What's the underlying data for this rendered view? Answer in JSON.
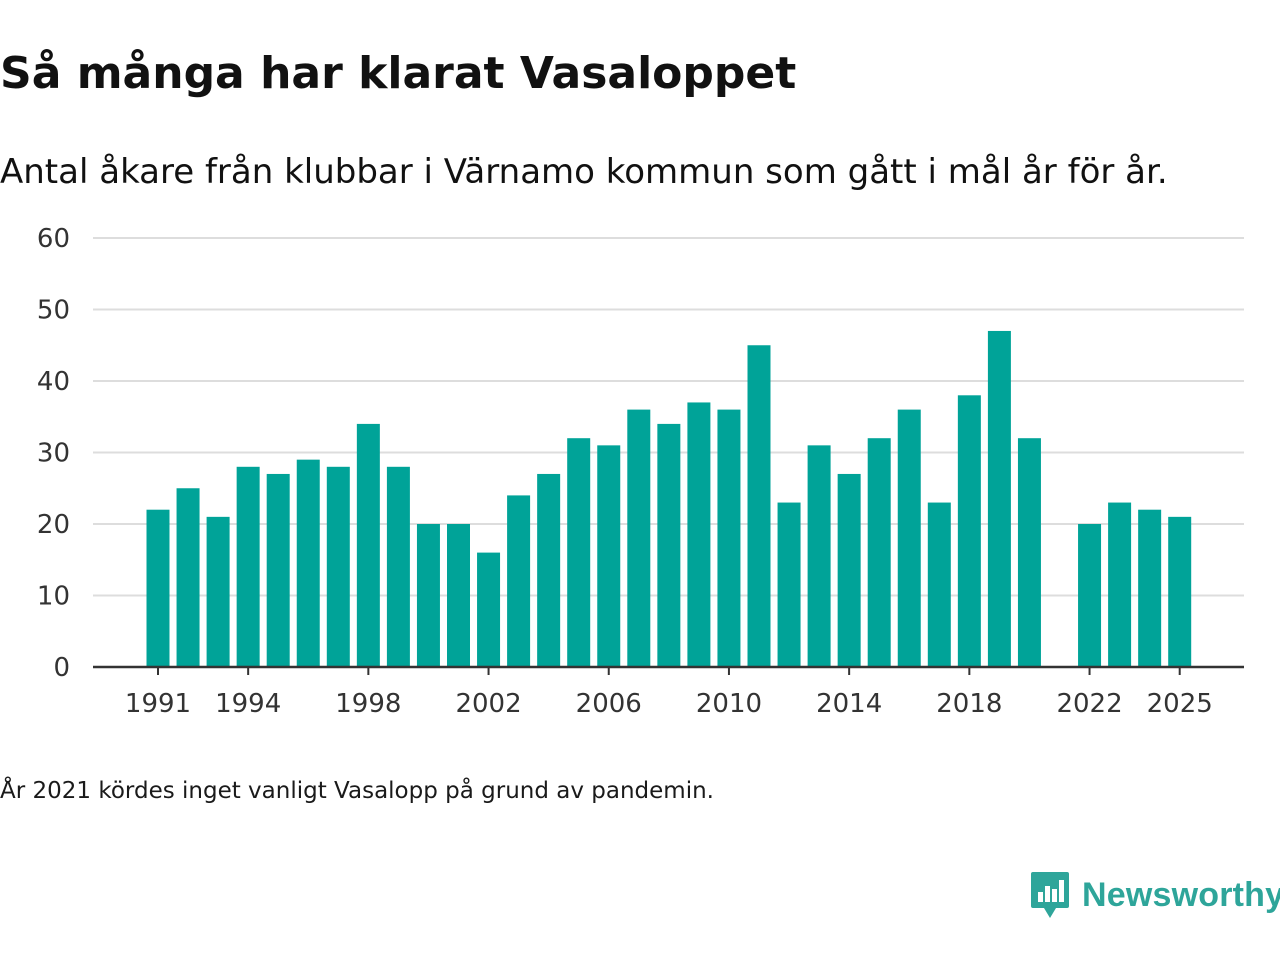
{
  "title": "Så många har klarat Vasaloppet",
  "subtitle": "Antal åkare från klubbar i Värnamo kommun som gått i mål år för år.",
  "note": "År 2021 kördes inget vanligt Vasalopp på grund av pandemin.",
  "brand": {
    "name": "Newsworthy",
    "icon": "newsworthy-logo-icon",
    "color": "#2ea59a"
  },
  "colors": {
    "bar": "#00a398",
    "grid": "#dddddd",
    "axis": "#333333",
    "tick_text": "#333333"
  },
  "chart_data": {
    "type": "bar",
    "title": "Så många har klarat Vasaloppet",
    "xlabel": "",
    "ylabel": "",
    "ylim": [
      0,
      60
    ],
    "yticks": [
      0,
      10,
      20,
      30,
      40,
      50,
      60
    ],
    "xticks": [
      "1991",
      "1994",
      "1998",
      "2002",
      "2006",
      "2010",
      "2014",
      "2018",
      "2022",
      "2025"
    ],
    "categories": [
      "1991",
      "1992",
      "1993",
      "1994",
      "1995",
      "1996",
      "1997",
      "1998",
      "1999",
      "2000",
      "2001",
      "2002",
      "2003",
      "2004",
      "2005",
      "2006",
      "2007",
      "2008",
      "2009",
      "2010",
      "2011",
      "2012",
      "2013",
      "2014",
      "2015",
      "2016",
      "2017",
      "2018",
      "2019",
      "2020",
      "2021",
      "2022",
      "2023",
      "2024",
      "2025"
    ],
    "values": [
      22,
      25,
      21,
      28,
      27,
      29,
      28,
      34,
      28,
      20,
      20,
      16,
      24,
      27,
      32,
      31,
      36,
      34,
      37,
      36,
      45,
      23,
      31,
      27,
      32,
      36,
      23,
      38,
      47,
      32,
      null,
      20,
      23,
      22,
      21
    ],
    "grid": true,
    "legend": "none"
  }
}
